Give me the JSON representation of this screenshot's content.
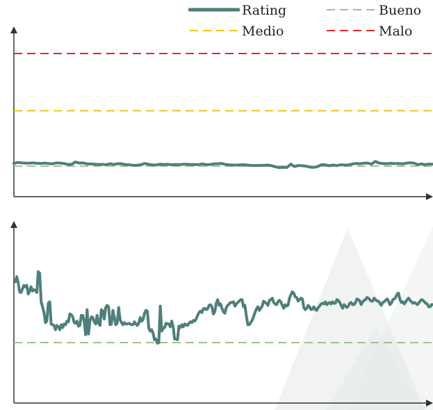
{
  "legend": {
    "rating": "Rating",
    "bueno": "Bueno",
    "medio": "Medio",
    "malo": "Malo"
  },
  "colors": {
    "rating": "#4f7f7a",
    "bueno": "#9dc28a",
    "medio": "#f3c316",
    "malo": "#e02a20",
    "axis": "#333333",
    "watermark": "#e6e9e9"
  },
  "chart_data": [
    {
      "type": "line",
      "legend_placement": "top-right",
      "grid": false,
      "ylim": [
        0,
        1
      ],
      "series": [
        {
          "name": "Rating",
          "values": [
            0.232,
            0.239,
            0.236,
            0.234,
            0.234,
            0.236,
            0.233,
            0.232,
            0.235,
            0.231,
            0.229,
            0.236,
            0.235,
            0.232,
            0.225,
            0.226,
            0.242,
            0.235,
            0.236,
            0.229,
            0.228,
            0.227,
            0.225,
            0.226,
            0.223,
            0.23,
            0.225,
            0.23,
            0.23,
            0.224,
            0.223,
            0.219,
            0.22,
            0.223,
            0.232,
            0.226,
            0.222,
            0.221,
            0.227,
            0.225,
            0.226,
            0.223,
            0.225,
            0.224,
            0.226,
            0.226,
            0.225,
            0.225,
            0.224,
            0.229,
            0.224,
            0.225,
            0.229,
            0.23,
            0.232,
            0.225,
            0.222,
            0.221,
            0.221,
            0.223,
            0.223,
            0.22,
            0.218,
            0.218,
            0.218,
            0.219,
            0.221,
            0.216,
            0.209,
            0.203,
            0.205,
            0.204,
            0.227,
            0.21,
            0.218,
            0.216,
            0.213,
            0.206,
            0.205,
            0.21,
            0.224,
            0.222,
            0.216,
            0.221,
            0.217,
            0.223,
            0.221,
            0.221,
            0.228,
            0.232,
            0.23,
            0.234,
            0.235,
            0.227,
            0.247,
            0.234,
            0.232,
            0.23,
            0.233,
            0.231,
            0.232,
            0.229,
            0.234,
            0.237,
            0.235,
            0.224,
            0.228,
            0.224,
            0.228,
            0.226
          ]
        },
        {
          "name": "Bueno",
          "values": [
            0.213
          ]
        },
        {
          "name": "Medio",
          "values": [
            0.6
          ]
        },
        {
          "name": "Malo",
          "values": [
            1.0
          ]
        }
      ]
    },
    {
      "type": "line",
      "grid": false,
      "series": [
        {
          "name": "Rating",
          "values": [
            0.85,
            0.92,
            0.84,
            0.71,
            0.7,
            0.75,
            0.8,
            0.78,
            0.8,
            0.68,
            0.72,
            0.78,
            0.72,
            0.74,
            0.73,
            0.7,
            0.99,
            0.97,
            0.57,
            0.5,
            0.42,
            0.28,
            0.3,
            0.55,
            0.57,
            0.26,
            0.25,
            0.24,
            0.18,
            0.24,
            0.22,
            0.18,
            0.25,
            0.21,
            0.26,
            0.25,
            0.3,
            0.29,
            0.4,
            0.39,
            0.36,
            0.28,
            0.27,
            0.3,
            0.23,
            0.24,
            0.38,
            0.38,
            0.3,
            0.11,
            0.46,
            0.12,
            0.3,
            0.36,
            0.35,
            0.29,
            0.26,
            0.38,
            0.27,
            0.24,
            0.46,
            0.44,
            0.33,
            0.49,
            0.52,
            0.5,
            0.25,
            0.26,
            0.45,
            0.35,
            0.25,
            0.27,
            0.49,
            0.32,
            0.28,
            0.25,
            0.28,
            0.26,
            0.26,
            0.27,
            0.26,
            0.25,
            0.25,
            0.29,
            0.26,
            0.24,
            0.27,
            0.35,
            0.3,
            0.32,
            0.41,
            0.45,
            0.44,
            0.2,
            0.16,
            0.18,
            0.13,
            0.04,
            0.05,
            -0.01,
            0.0,
            0.51,
            0.16,
            0.2,
            0.21,
            0.27,
            0.26,
            0.26,
            0.22,
            0.3,
            0.22,
            0.05,
            0.05,
            0.04,
            0.23,
            0.21,
            0.25,
            0.22,
            0.26,
            0.25,
            0.24,
            0.27,
            0.29,
            0.28,
            0.31,
            0.3,
            0.33,
            0.38,
            0.42,
            0.44,
            0.42,
            0.47,
            0.48,
            0.46,
            0.47,
            0.52,
            0.53,
            0.5,
            0.4,
            0.43,
            0.55,
            0.6,
            0.52,
            0.54,
            0.48,
            0.43,
            0.41,
            0.49,
            0.52,
            0.54,
            0.56,
            0.56,
            0.57,
            0.51,
            0.54,
            0.56,
            0.58,
            0.6,
            0.6,
            0.5,
            0.52,
            0.37,
            0.25,
            0.25,
            0.28,
            0.31,
            0.36,
            0.42,
            0.47,
            0.5,
            0.45,
            0.48,
            0.51,
            0.58,
            0.56,
            0.55,
            0.52,
            0.59,
            0.6,
            0.62,
            0.56,
            0.54,
            0.53,
            0.57,
            0.59,
            0.57,
            0.52,
            0.48,
            0.53,
            0.51,
            0.52,
            0.62,
            0.67,
            0.71,
            0.69,
            0.64,
            0.63,
            0.58,
            0.6,
            0.62,
            0.61,
            0.49,
            0.46,
            0.48,
            0.52,
            0.5,
            0.46,
            0.47,
            0.5,
            0.46,
            0.45,
            0.49,
            0.51,
            0.54,
            0.55,
            0.54,
            0.57,
            0.53,
            0.55,
            0.56,
            0.54,
            0.57,
            0.55,
            0.55,
            0.6,
            0.59,
            0.56,
            0.52,
            0.48,
            0.53,
            0.51,
            0.49,
            0.51,
            0.55,
            0.56,
            0.53,
            0.53,
            0.56,
            0.61,
            0.6,
            0.58,
            0.53,
            0.57,
            0.59,
            0.6,
            0.63,
            0.62,
            0.6,
            0.58,
            0.58,
            0.62,
            0.6,
            0.58,
            0.58,
            0.55,
            0.52,
            0.56,
            0.57,
            0.59,
            0.61,
            0.58,
            0.53,
            0.55,
            0.6,
            0.61,
            0.63,
            0.68,
            0.69,
            0.6,
            0.56,
            0.57,
            0.54,
            0.57,
            0.6,
            0.62,
            0.59,
            0.57,
            0.55,
            0.56,
            0.55,
            0.53,
            0.55,
            0.58,
            0.6,
            0.59,
            0.57,
            0.55,
            0.54,
            0.5,
            0.5,
            0.53,
            0.53
          ]
        },
        {
          "name": "Bueno",
          "values": [
            0.0
          ]
        }
      ]
    }
  ]
}
